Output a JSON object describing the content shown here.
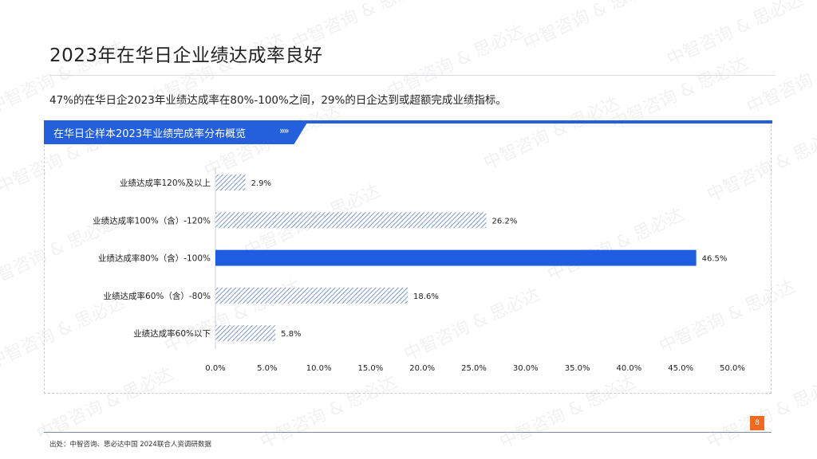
{
  "page": {
    "title": "2023年在华日企业绩达成率良好",
    "subtitle": "47%的在华日企2023年业绩达成率在80%-100%之间，29%的日企达到或超额完成业绩指标。",
    "panel_title": "在华日企样本2023年业绩完成率分布概览",
    "panel_icon": "»»",
    "source": "出处：中智咨询、思必达中国 2024联合人资调研数据",
    "page_number": "8",
    "watermark": "中智咨询 & 思必达"
  },
  "colors": {
    "accent": "#2560dc",
    "highlight_bar": "#1f5de0",
    "hatch_bar": "#5a7fc8",
    "page_badge": "#f26a21"
  },
  "chart_data": {
    "type": "bar",
    "orientation": "horizontal",
    "categories": [
      "业绩达成率120%及以上",
      "业绩达成率100%（含）-120%",
      "业绩达成率80%（含）-100%",
      "业绩达成率60%（含）-80%",
      "业绩达成率60%以下"
    ],
    "values": [
      2.9,
      26.2,
      46.5,
      18.6,
      5.8
    ],
    "value_labels": [
      "2.9%",
      "26.2%",
      "46.5%",
      "18.6%",
      "5.8%"
    ],
    "highlight_index": 2,
    "xlim": [
      0,
      50
    ],
    "xticks": [
      "0.0%",
      "5.0%",
      "10.0%",
      "15.0%",
      "20.0%",
      "25.0%",
      "30.0%",
      "35.0%",
      "40.0%",
      "45.0%",
      "50.0%"
    ],
    "grid": false,
    "legend": "none"
  }
}
